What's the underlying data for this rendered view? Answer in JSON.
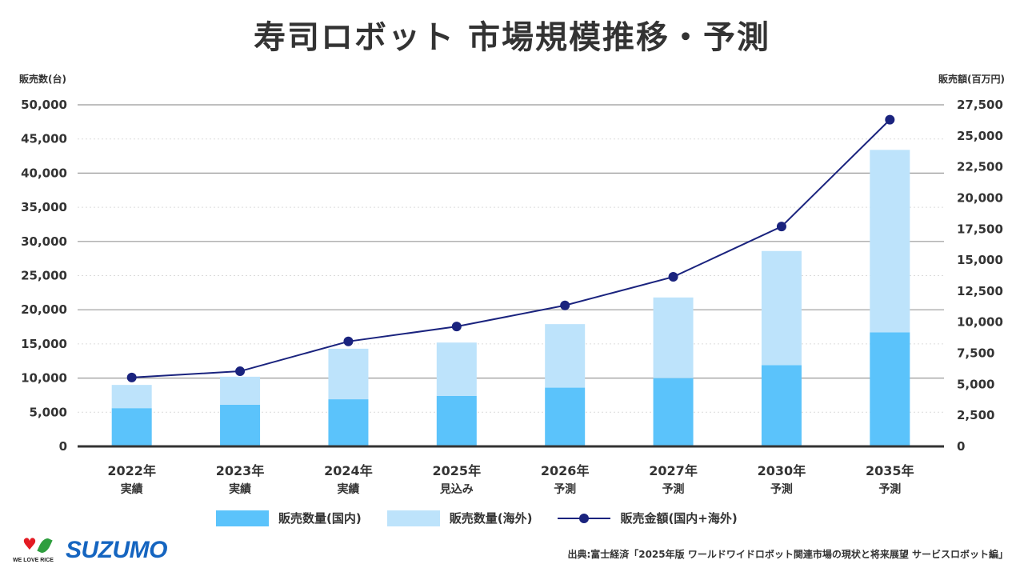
{
  "header": {
    "title": "寿司ロボット 市場規模推移・予測"
  },
  "axes": {
    "left_title": "販売数(台)",
    "right_title": "販売額(百万円)"
  },
  "legend": {
    "items": [
      {
        "label": "販売数量(国内)",
        "type": "bar",
        "color": "#5bc3fb"
      },
      {
        "label": "販売数量(海外)",
        "type": "bar",
        "color": "#bde3fb"
      },
      {
        "label": "販売金額(国内+海外)",
        "type": "line",
        "color": "#1a237e"
      }
    ]
  },
  "footer": {
    "logo_text": "SUZUMO",
    "logo_tagline": "WE LOVE RICE",
    "source": "出典:富士経済「2025年版 ワールドワイドロボット関連市場の現状と将来展望 サービスロボット編」"
  },
  "chart_data": {
    "type": "bar",
    "title": "寿司ロボット 市場規模推移・予測",
    "categories": [
      "2022年",
      "2023年",
      "2024年",
      "2025年",
      "2026年",
      "2027年",
      "2030年",
      "2035年"
    ],
    "category_sublabels": [
      "実績",
      "実績",
      "実績",
      "見込み",
      "予測",
      "予測",
      "予測",
      "予測"
    ],
    "ylabel": "販売数(台)",
    "ylabel_right": "販売額(百万円)",
    "ylim": [
      0,
      50000
    ],
    "ylim_right": [
      0,
      27500
    ],
    "yticks": [
      "0",
      "5,000",
      "10,000",
      "15,000",
      "20,000",
      "25,000",
      "30,000",
      "35,000",
      "40,000",
      "45,000",
      "50,000"
    ],
    "yticks_right": [
      "0",
      "2,500",
      "5,000",
      "7,500",
      "10,000",
      "12,500",
      "15,000",
      "17,500",
      "20,000",
      "22,500",
      "25,000",
      "27,500"
    ],
    "stacked": true,
    "grid": true,
    "legend_position": "bottom",
    "series": [
      {
        "name": "販売数量(国内)",
        "type": "bar",
        "axis": "left",
        "color": "#5bc3fb",
        "values": [
          5600,
          6100,
          6900,
          7400,
          8600,
          10000,
          11900,
          16700
        ]
      },
      {
        "name": "販売数量(海外)",
        "type": "bar",
        "axis": "left",
        "color": "#bde3fb",
        "values": [
          3400,
          4100,
          7400,
          7800,
          9300,
          11800,
          16700,
          26700
        ]
      },
      {
        "name": "販売金額(国内+海外)",
        "type": "line",
        "axis": "right",
        "color": "#1a237e",
        "values": [
          5550,
          6050,
          8450,
          9650,
          11350,
          13650,
          17700,
          26300
        ]
      }
    ]
  }
}
